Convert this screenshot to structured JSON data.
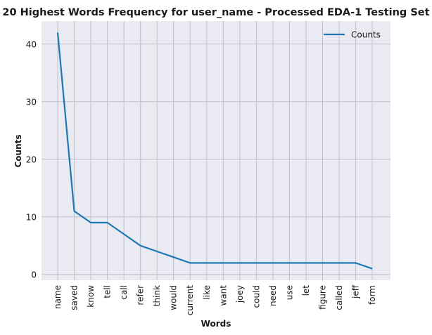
{
  "chart_data": {
    "type": "line",
    "title": "20 Highest Words Frequency for user_name - Processed EDA-1 Testing Set",
    "xlabel": "Words",
    "ylabel": "Counts",
    "categories": [
      "name",
      "saved",
      "know",
      "tell",
      "call",
      "refer",
      "think",
      "would",
      "current",
      "like",
      "want",
      "joey",
      "could",
      "need",
      "use",
      "let",
      "figure",
      "called",
      "jeff",
      "form"
    ],
    "series": [
      {
        "name": "Counts",
        "values": [
          42,
          11,
          9,
          9,
          7,
          5,
          4,
          3,
          2,
          2,
          2,
          2,
          2,
          2,
          2,
          2,
          2,
          2,
          2,
          1
        ]
      }
    ],
    "ylim": [
      -1,
      44
    ],
    "yticks": [
      0,
      10,
      20,
      30,
      40
    ],
    "grid": true,
    "legend": "top-right",
    "colors": {
      "line": "#1f77b4",
      "plot_bg": "#eaeaf2",
      "grid": "#c0c0c8"
    }
  }
}
